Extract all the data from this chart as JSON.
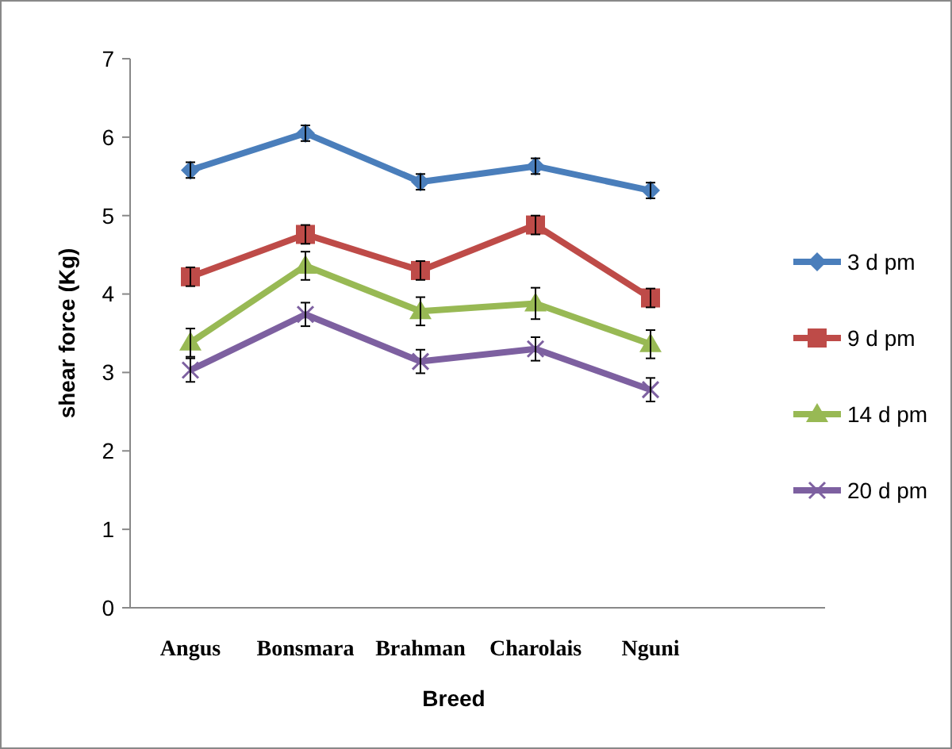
{
  "chart_data": {
    "type": "line",
    "xlabel": "Breed",
    "ylabel": "shear force (Kg)",
    "categories": [
      "Angus",
      "Bonsmara",
      "Brahman",
      "Charolais",
      "Nguni"
    ],
    "series": [
      {
        "name": "3 d pm",
        "color": "#4a7ebb",
        "marker": "diamond",
        "values": [
          5.58,
          6.05,
          5.43,
          5.63,
          5.32
        ],
        "errors": [
          0.1,
          0.1,
          0.1,
          0.1,
          0.1
        ]
      },
      {
        "name": "9 d pm",
        "color": "#be4b48",
        "marker": "square",
        "values": [
          4.22,
          4.76,
          4.3,
          4.88,
          3.95
        ],
        "errors": [
          0.12,
          0.12,
          0.12,
          0.12,
          0.12
        ]
      },
      {
        "name": "14 d pm",
        "color": "#98b954",
        "marker": "triangle",
        "values": [
          3.38,
          4.36,
          3.78,
          3.88,
          3.36
        ],
        "errors": [
          0.18,
          0.18,
          0.18,
          0.2,
          0.18
        ]
      },
      {
        "name": "20 d pm",
        "color": "#7d60a0",
        "marker": "cross",
        "values": [
          3.03,
          3.74,
          3.14,
          3.3,
          2.78
        ],
        "errors": [
          0.15,
          0.15,
          0.15,
          0.15,
          0.15
        ]
      }
    ],
    "ylim": [
      0,
      7
    ],
    "yticks": [
      0,
      1,
      2,
      3,
      4,
      5,
      6,
      7
    ],
    "legend": "right",
    "grid": false
  }
}
